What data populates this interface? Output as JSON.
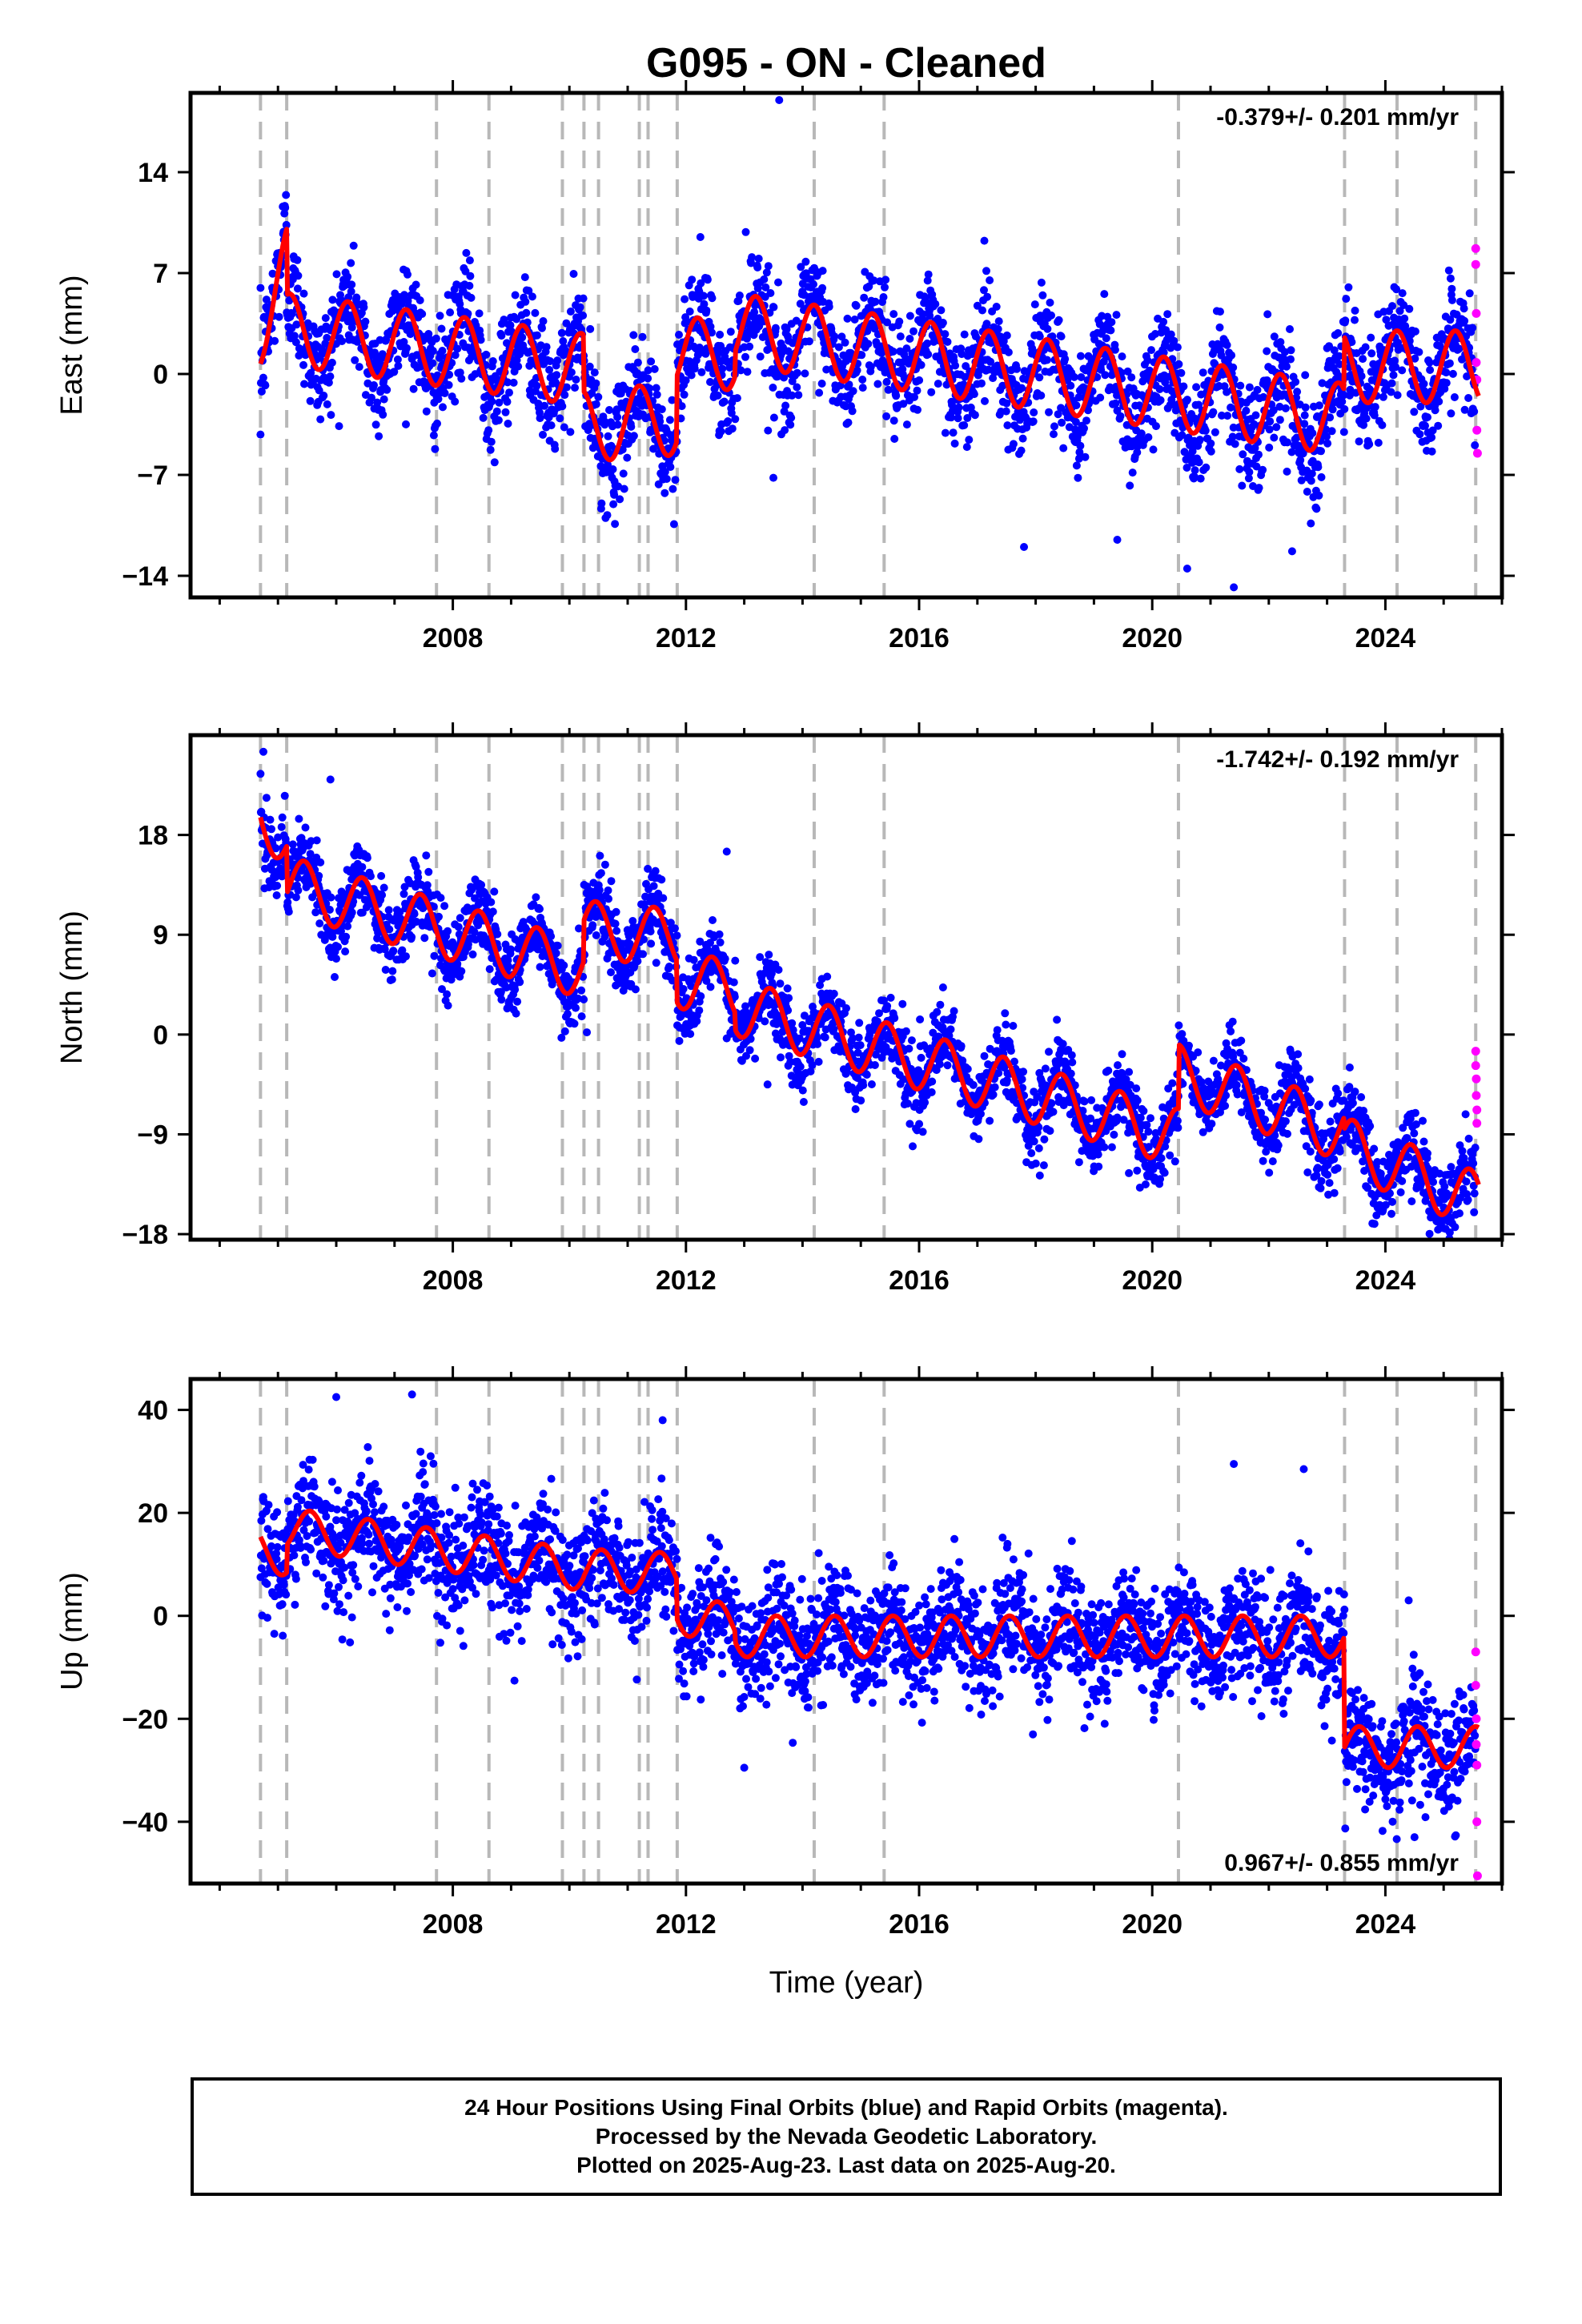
{
  "colors": {
    "final_orbits": "#0000ff",
    "rapid_orbits": "#ff00ff",
    "model_fit": "#ff0000",
    "event_lines": "#b8b8b8"
  },
  "chart_data": {
    "type": "scatter",
    "title": "G095  - ON - Cleaned",
    "xlabel": "Time (year)",
    "xlim": [
      2003.5,
      2026.0
    ],
    "x_ticks": [
      2008,
      2012,
      2016,
      2020,
      2024
    ],
    "event_lines": [
      2004.7,
      2005.15,
      2007.72,
      2008.62,
      2009.88,
      2010.25,
      2010.5,
      2011.2,
      2011.35,
      2011.85,
      2014.2,
      2015.4,
      2020.45,
      2023.3,
      2024.2,
      2025.55
    ],
    "panels": [
      {
        "id": "east",
        "ylabel": "East (mm)",
        "ylim": [
          -15.5,
          19.5
        ],
        "yticks": [
          -14,
          -7,
          0,
          7,
          14
        ],
        "rate_text": "-0.379+/- 0.201 mm/yr",
        "rate_position": "top-right",
        "model": {
          "type": "piecewise-seasonal",
          "start": 2004.7,
          "end": 2025.6,
          "amplitude": 2.5,
          "phase_peak": 0.2,
          "segments": [
            {
              "from": 2004.7,
              "to": 2005.15,
              "a": 3.2,
              "b": 10
            },
            {
              "from": 2005.15,
              "to": 2010.25,
              "a": 3.1,
              "b": -0.55
            },
            {
              "from": 2010.25,
              "to": 2011.85,
              "a": -3.6,
              "b": 0.3
            },
            {
              "from": 2011.85,
              "to": 2012.85,
              "a": 1.4,
              "b": 0
            },
            {
              "from": 2012.85,
              "to": 2023.3,
              "a": 3.1,
              "b": -0.6
            },
            {
              "from": 2023.3,
              "to": 2025.6,
              "a": 0.5,
              "b": 0
            }
          ]
        },
        "scatter": {
          "noise": 1.9,
          "count": 3000
        },
        "outliers": [
          {
            "x": 2013.6,
            "y": 19.0
          },
          {
            "x": 2017.8,
            "y": -12.0
          },
          {
            "x": 2019.4,
            "y": -11.5
          },
          {
            "x": 2020.6,
            "y": -13.5
          },
          {
            "x": 2021.4,
            "y": -14.8
          },
          {
            "x": 2022.4,
            "y": -12.3
          },
          {
            "x": 2004.7,
            "y": -4.2
          },
          {
            "x": 2013.5,
            "y": -7.2
          }
        ],
        "rapid": [
          {
            "x": 2025.55,
            "y": 8.7
          },
          {
            "x": 2025.55,
            "y": 7.6
          },
          {
            "x": 2025.56,
            "y": 4.2
          },
          {
            "x": 2025.56,
            "y": 0.8
          },
          {
            "x": 2025.57,
            "y": -0.4
          },
          {
            "x": 2025.57,
            "y": -3.9
          },
          {
            "x": 2025.58,
            "y": -5.5
          }
        ]
      },
      {
        "id": "north",
        "ylabel": "North (mm)",
        "ylim": [
          -18.5,
          27
        ],
        "yticks": [
          -18,
          -9,
          0,
          9,
          18
        ],
        "rate_text": "-1.742+/- 0.192 mm/yr",
        "rate_position": "top-right",
        "model": {
          "type": "piecewise-seasonal",
          "start": 2004.7,
          "end": 2025.6,
          "amplitude": 2.6,
          "phase_peak": 0.45,
          "segments": [
            {
              "from": 2004.7,
              "to": 2005.15,
              "a": 19.6,
              "b": -4
            },
            {
              "from": 2005.15,
              "to": 2010.25,
              "a": 13.5,
              "b": -1.5
            },
            {
              "from": 2010.25,
              "to": 2011.85,
              "a": 9.5,
              "b": -0.5
            },
            {
              "from": 2011.85,
              "to": 2012.85,
              "a": 5.0,
              "b": -1.0
            },
            {
              "from": 2012.85,
              "to": 2020.45,
              "a": 2.5,
              "b": -1.55
            },
            {
              "from": 2020.45,
              "to": 2023.3,
              "a": -3.5,
              "b": -1.9
            },
            {
              "from": 2023.3,
              "to": 2025.6,
              "a": -10.0,
              "b": -2.2
            }
          ]
        },
        "scatter": {
          "noise": 1.7,
          "count": 3000
        },
        "outliers": [
          {
            "x": 2004.75,
            "y": 25.5
          },
          {
            "x": 2005.9,
            "y": 23.0
          },
          {
            "x": 2012.7,
            "y": 16.5
          },
          {
            "x": 2010.3,
            "y": 0.2
          },
          {
            "x": 2013.4,
            "y": -4.5
          },
          {
            "x": 2019.6,
            "y": -12.5
          }
        ],
        "rapid": [
          {
            "x": 2025.55,
            "y": -1.5
          },
          {
            "x": 2025.55,
            "y": -2.8
          },
          {
            "x": 2025.56,
            "y": -4.0
          },
          {
            "x": 2025.56,
            "y": -5.5
          },
          {
            "x": 2025.57,
            "y": -6.8
          },
          {
            "x": 2025.57,
            "y": -8.0
          }
        ]
      },
      {
        "id": "up",
        "ylabel": "Up (mm)",
        "ylim": [
          -52,
          46
        ],
        "yticks": [
          -40,
          -20,
          0,
          20,
          40
        ],
        "rate_text": "0.967+/- 0.855 mm/yr",
        "rate_position": "bottom-right",
        "model": {
          "type": "piecewise-seasonal",
          "start": 2004.7,
          "end": 2025.6,
          "amplitude": 4.0,
          "phase_peak": 0.55,
          "segments": [
            {
              "from": 2004.7,
              "to": 2005.15,
              "a": 13,
              "b": -3
            },
            {
              "from": 2005.15,
              "to": 2010.25,
              "a": 17,
              "b": -1.6
            },
            {
              "from": 2010.25,
              "to": 2011.85,
              "a": 9.0,
              "b": -0.5
            },
            {
              "from": 2011.85,
              "to": 2012.85,
              "a": 0.5,
              "b": -2.5
            },
            {
              "from": 2012.85,
              "to": 2023.3,
              "a": -4.0,
              "b": 0
            },
            {
              "from": 2023.3,
              "to": 2025.6,
              "a": -25.5,
              "b": 0
            }
          ]
        },
        "scatter": {
          "noise": 5.5,
          "count": 3000
        },
        "outliers": [
          {
            "x": 2007.3,
            "y": 43.0
          },
          {
            "x": 2006.0,
            "y": 42.5
          },
          {
            "x": 2011.6,
            "y": 38.0
          },
          {
            "x": 2021.4,
            "y": 29.5
          },
          {
            "x": 2022.6,
            "y": 28.5
          },
          {
            "x": 2013.0,
            "y": -29.5
          },
          {
            "x": 2024.5,
            "y": -43.0
          },
          {
            "x": 2024.4,
            "y": 3.0
          }
        ],
        "rapid": [
          {
            "x": 2025.55,
            "y": -7.0
          },
          {
            "x": 2025.55,
            "y": -13.5
          },
          {
            "x": 2025.56,
            "y": -20.0
          },
          {
            "x": 2025.56,
            "y": -25.0
          },
          {
            "x": 2025.57,
            "y": -29.0
          },
          {
            "x": 2025.57,
            "y": -40.0
          },
          {
            "x": 2025.58,
            "y": -50.5
          }
        ]
      }
    ]
  },
  "footer": {
    "line1": "24 Hour Positions Using Final Orbits (blue) and Rapid Orbits (magenta).",
    "line2": "Processed by the Nevada Geodetic Laboratory.",
    "line3": "Plotted on 2025-Aug-23. Last data on 2025-Aug-20."
  }
}
